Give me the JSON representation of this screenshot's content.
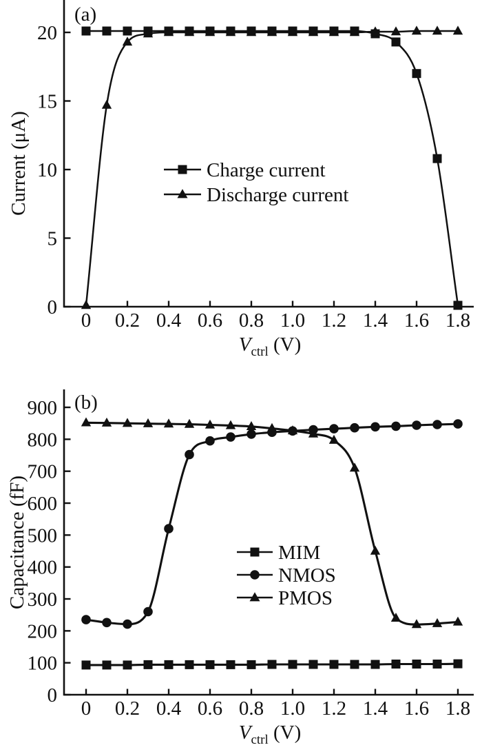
{
  "figure_label_a": "(a)",
  "figure_label_b": "(b)",
  "chart_data": [
    {
      "type": "line",
      "panel_label": "(a)",
      "ylabel": "Current (μA)",
      "xlabel": "V_ctrl (V)",
      "xlabel_rich": {
        "var": "V",
        "sub": "ctrl",
        "unit": " (V)"
      },
      "x": [
        0,
        0.1,
        0.2,
        0.3,
        0.4,
        0.5,
        0.6,
        0.7,
        0.8,
        0.9,
        1.0,
        1.1,
        1.2,
        1.3,
        1.4,
        1.5,
        1.6,
        1.7,
        1.8
      ],
      "series": [
        {
          "name": "Charge current",
          "marker": "square",
          "values": [
            20.1,
            20.1,
            20.1,
            20.1,
            20.1,
            20.1,
            20.1,
            20.1,
            20.1,
            20.1,
            20.1,
            20.1,
            20.1,
            20.1,
            19.9,
            19.3,
            17.0,
            10.8,
            0.1
          ]
        },
        {
          "name": "Discharge current",
          "marker": "triangle-up",
          "values": [
            0.1,
            14.7,
            19.3,
            19.9,
            20.0,
            20.0,
            20.0,
            20.0,
            20.0,
            20.0,
            20.0,
            20.0,
            20.0,
            20.0,
            20.05,
            20.05,
            20.1,
            20.1,
            20.1
          ]
        }
      ],
      "xlim": [
        0,
        1.8
      ],
      "ylim": [
        0,
        22.4
      ],
      "xticks": [
        0,
        0.2,
        0.4,
        0.6,
        0.8,
        1.0,
        1.2,
        1.4,
        1.6,
        1.8
      ],
      "xtick_labels": [
        "0",
        "0.2",
        "0.4",
        "0.6",
        "0.8",
        "1.0",
        "1.2",
        "1.4",
        "1.6",
        "1.8"
      ],
      "yticks": [
        0,
        5,
        10,
        15,
        20
      ],
      "grid": false,
      "legend_position": "center"
    },
    {
      "type": "line",
      "panel_label": "(b)",
      "ylabel": "Capacitance (fF)",
      "xlabel": "V_ctrl (V)",
      "xlabel_rich": {
        "var": "V",
        "sub": "ctrl",
        "unit": " (V)"
      },
      "x": [
        0,
        0.1,
        0.2,
        0.3,
        0.4,
        0.5,
        0.6,
        0.7,
        0.8,
        0.9,
        1.0,
        1.1,
        1.2,
        1.3,
        1.4,
        1.5,
        1.6,
        1.7,
        1.8
      ],
      "series": [
        {
          "name": "MIM",
          "marker": "square",
          "values": [
            93,
            93,
            93,
            94,
            94,
            94,
            94,
            94,
            94,
            95,
            95,
            95,
            95,
            95,
            95,
            96,
            96,
            96,
            97
          ]
        },
        {
          "name": "NMOS",
          "marker": "circle",
          "values": [
            235,
            226,
            221,
            260,
            520,
            752,
            795,
            807,
            816,
            822,
            826,
            830,
            833,
            836,
            839,
            841,
            844,
            846,
            848
          ]
        },
        {
          "name": "PMOS",
          "marker": "triangle-up",
          "values": [
            852,
            851,
            850,
            849,
            848,
            847,
            845,
            843,
            840,
            834,
            827,
            817,
            797,
            710,
            450,
            240,
            220,
            223,
            228
          ]
        }
      ],
      "xlim": [
        0,
        1.8
      ],
      "ylim": [
        0,
        956
      ],
      "xticks": [
        0,
        0.2,
        0.4,
        0.6,
        0.8,
        1.0,
        1.2,
        1.4,
        1.6,
        1.8
      ],
      "xtick_labels": [
        "0",
        "0.2",
        "0.4",
        "0.6",
        "0.8",
        "1.0",
        "1.2",
        "1.4",
        "1.6",
        "1.8"
      ],
      "yticks": [
        0,
        100,
        200,
        300,
        400,
        500,
        600,
        700,
        800,
        900
      ],
      "grid": false,
      "legend_position": "center-right"
    }
  ]
}
